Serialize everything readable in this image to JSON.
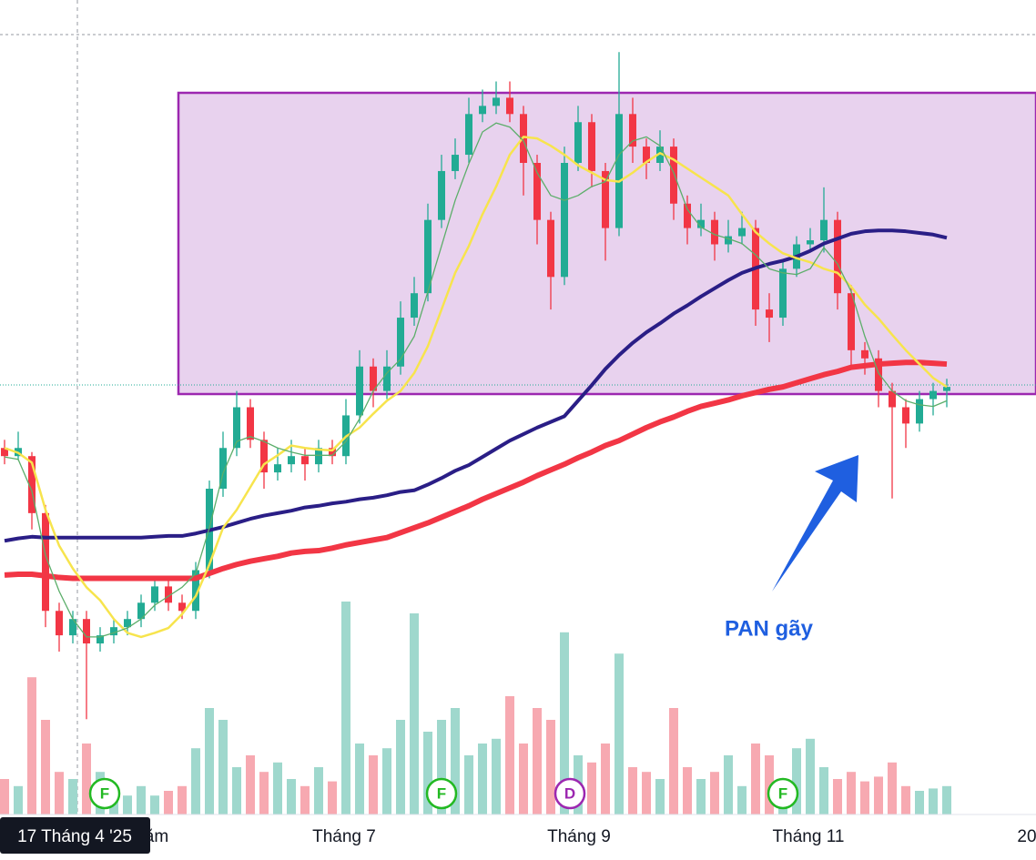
{
  "chart_data": {
    "type": "candlestick",
    "ylim": [
      0,
      100
    ],
    "y2lim": [
      0,
      100
    ],
    "up_color": "#22ab94",
    "down_color": "#f23645",
    "volume_up_color": "#9fd8cd",
    "volume_down_color": "#f7a9b1",
    "open": [
      45,
      44,
      44,
      37,
      25,
      22,
      24,
      21,
      22,
      23,
      24,
      26,
      28,
      26,
      25,
      30,
      40,
      45,
      50,
      46,
      42,
      43,
      44,
      43,
      45,
      44,
      49,
      55,
      52,
      55,
      61,
      64,
      73,
      79,
      81,
      86,
      87,
      88,
      86,
      80,
      73,
      66,
      80,
      85,
      79,
      72,
      86,
      82,
      80,
      82,
      75,
      72,
      73,
      70,
      71,
      72,
      62,
      61,
      67,
      70,
      70.5,
      73,
      64,
      57,
      56,
      52,
      50,
      48,
      51,
      52
    ],
    "high": [
      46,
      47,
      44.5,
      38,
      26,
      25,
      25,
      23,
      24,
      25,
      27,
      29,
      29,
      27,
      31,
      41,
      47,
      52,
      51,
      47,
      45,
      46,
      45,
      46,
      46,
      51,
      57,
      56,
      57,
      63,
      66,
      75,
      81,
      83,
      88,
      89,
      90,
      90,
      87,
      81,
      74,
      82,
      87,
      86,
      80,
      93.6,
      88,
      83,
      84,
      83,
      76,
      75,
      74,
      73,
      74,
      73,
      64,
      68,
      71,
      72,
      77,
      74,
      65,
      58,
      57,
      53,
      51,
      52,
      53,
      53.5
    ],
    "low": [
      43,
      43.5,
      35,
      23,
      20,
      21,
      11.7,
      20,
      21,
      22,
      23,
      25,
      25,
      24,
      24,
      29,
      39,
      44,
      45,
      40,
      41,
      42,
      41,
      42,
      43,
      43,
      48,
      50,
      51,
      54,
      60,
      63,
      72,
      78,
      80,
      85,
      86,
      85,
      76,
      70,
      62,
      65,
      79,
      77,
      68,
      71,
      80,
      78,
      79,
      73,
      70,
      71,
      68,
      69,
      70,
      60,
      58,
      60,
      66,
      69,
      69,
      62,
      55,
      54,
      50,
      38.8,
      45,
      47,
      49,
      50
    ],
    "close": [
      44,
      45,
      37,
      25,
      22,
      24,
      21,
      22,
      23,
      24,
      26,
      28,
      26,
      25,
      30,
      40,
      45,
      50,
      46,
      42,
      43,
      44,
      43,
      45,
      44,
      49,
      55,
      52,
      55,
      61,
      64,
      73,
      79,
      81,
      86,
      87,
      88,
      86,
      80,
      73,
      66,
      80,
      85,
      79,
      72,
      86,
      82,
      80,
      82,
      75,
      72,
      73,
      70,
      71,
      72,
      62,
      61,
      67,
      70,
      70.5,
      73,
      64,
      57,
      56,
      52,
      50,
      48,
      51,
      52,
      52.5
    ],
    "volume": [
      15,
      12,
      58,
      40,
      18,
      15,
      30,
      18,
      10,
      8,
      12,
      8,
      10,
      12,
      28,
      45,
      40,
      20,
      25,
      18,
      22,
      15,
      12,
      20,
      14,
      90,
      30,
      25,
      28,
      40,
      85,
      35,
      40,
      45,
      25,
      30,
      32,
      50,
      30,
      45,
      40,
      77,
      25,
      22,
      30,
      68,
      20,
      18,
      15,
      45,
      20,
      15,
      18,
      25,
      12,
      30,
      25,
      15,
      28,
      32,
      20,
      15,
      18,
      14,
      16,
      22,
      12,
      10,
      11,
      12
    ],
    "moving_averages": [
      {
        "color": "#f23645",
        "values": [
          29.4,
          29.5,
          29.5,
          29.3,
          29.1,
          29,
          29,
          29,
          29,
          29,
          29,
          29,
          29,
          29,
          29,
          29.6,
          30.2,
          30.7,
          31.1,
          31.4,
          31.7,
          32.1,
          32.3,
          32.4,
          32.7,
          33.1,
          33.4,
          33.7,
          34,
          34.6,
          35.2,
          35.8,
          36.5,
          37.2,
          37.9,
          38.7,
          39.4,
          40.1,
          40.8,
          41.6,
          42.3,
          43,
          43.8,
          44.5,
          45.3,
          45.9,
          46.7,
          47.5,
          48.2,
          48.8,
          49.5,
          50.1,
          50.5,
          50.9,
          51.4,
          51.8,
          52.2,
          52.5,
          53,
          53.5,
          54,
          54.4,
          54.9,
          55.1,
          55.3,
          55.4,
          55.5,
          55.5,
          55.4,
          55.3
        ]
      },
      {
        "color": "#2a1e86",
        "values": [
          33.6,
          33.9,
          34.1,
          34,
          34,
          34,
          34,
          34,
          34,
          34,
          34,
          34.1,
          34.2,
          34.2,
          34.5,
          34.9,
          35.3,
          35.8,
          36.3,
          36.7,
          37,
          37.3,
          37.7,
          37.9,
          38.2,
          38.4,
          38.7,
          38.9,
          39.2,
          39.6,
          39.8,
          40.5,
          41.3,
          42.2,
          42.9,
          43.9,
          44.9,
          45.9,
          46.7,
          47.5,
          48.2,
          48.9,
          50.8,
          52.7,
          54.7,
          56.4,
          57.9,
          59.2,
          60.3,
          61.5,
          62.5,
          63.6,
          64.6,
          65.6,
          66.5,
          67.1,
          67.6,
          68,
          68.5,
          69.2,
          70.1,
          70.7,
          71.3,
          71.6,
          71.7,
          71.7,
          71.6,
          71.4,
          71.2,
          70.8
        ]
      },
      {
        "color": "#f7e44d",
        "values": [
          45,
          44.4,
          43.2,
          37.4,
          33,
          30.2,
          27.9,
          26.3,
          24,
          22.3,
          21.8,
          22.3,
          22.9,
          24.6,
          26.8,
          30.7,
          35.2,
          37.4,
          40.2,
          43,
          44.1,
          45.3,
          45,
          44.8,
          44.7,
          46.4,
          47.5,
          49.2,
          50.8,
          52,
          54.2,
          57.5,
          62,
          66.5,
          69.8,
          73.7,
          77.1,
          81,
          83.2,
          83,
          82.1,
          81,
          79.7,
          78.8,
          77.9,
          77.7,
          78.8,
          80.1,
          81.2,
          80.4,
          79.3,
          78.2,
          77.1,
          76,
          73.7,
          71.5,
          70.1,
          68.9,
          68.3,
          67.8,
          67,
          66.5,
          64.8,
          62.6,
          60.9,
          58.9,
          57,
          55.3,
          53.6,
          52.5
        ]
      },
      {
        "color": "#5cae6a",
        "values": [
          43.9,
          43.6,
          39.7,
          31.8,
          27.4,
          24,
          21.8,
          21.8,
          22.3,
          22.9,
          24,
          25.7,
          26.8,
          27.9,
          29.6,
          35.2,
          41.9,
          45.8,
          46.4,
          45.8,
          45,
          44.5,
          44.1,
          44.1,
          44.1,
          45.8,
          48.6,
          52,
          54.2,
          55.9,
          58.7,
          64.2,
          69.8,
          75.4,
          79.9,
          83.8,
          84.9,
          84.4,
          82.7,
          78.8,
          76,
          75.4,
          76,
          77.1,
          77.7,
          81,
          82.7,
          83.2,
          82.1,
          78.8,
          74.3,
          72.1,
          71.2,
          70.7,
          70.1,
          68.7,
          67,
          66.5,
          66.3,
          67,
          69.6,
          67.6,
          64.2,
          58.7,
          54.2,
          52,
          50.8,
          50.3,
          50.1,
          50.8
        ]
      }
    ],
    "crosshair_label": "17 Tháng 4 '25",
    "x_axis_labels": [
      "ăm",
      "Tháng 7",
      "Tháng 9",
      "Tháng 11",
      "20"
    ],
    "events": [
      "F",
      "F",
      "D",
      "F"
    ],
    "annotation": "PAN gãy"
  }
}
